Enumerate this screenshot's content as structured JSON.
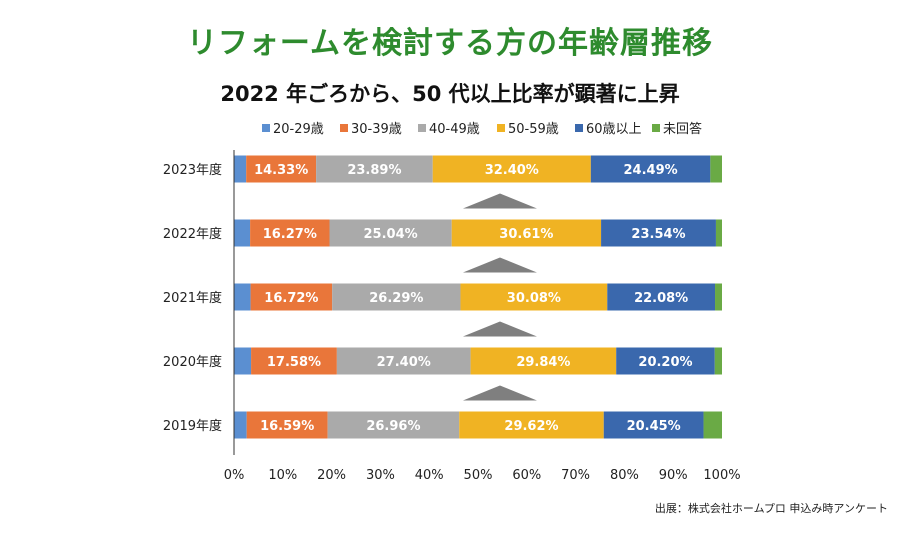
{
  "title": "リフォームを検討する方の年齢層推移",
  "subtitle": "2022 年ごろから、50 代以上比率が顕著に上昇",
  "source": "出展：株式会社ホームプロ 申込み時アンケート",
  "chart_data": {
    "type": "bar",
    "orientation": "horizontal",
    "stacked": true,
    "percent": true,
    "categories": [
      "2023年度",
      "2022年度",
      "2021年度",
      "2020年度",
      "2019年度"
    ],
    "series": [
      {
        "name": "20-29歳",
        "color": "#5b8fd1",
        "values": [
          2.5,
          3.3,
          3.4,
          3.5,
          2.6
        ],
        "labels": [
          "",
          "",
          "",
          "",
          ""
        ],
        "label_color": "#ffffff"
      },
      {
        "name": "30-39歳",
        "color": "#e9763a",
        "values": [
          14.33,
          16.27,
          16.72,
          17.58,
          16.59
        ],
        "labels": [
          "14.33%",
          "16.27%",
          "16.72%",
          "17.58%",
          "16.59%"
        ],
        "label_color": "#ffffff"
      },
      {
        "name": "40-49歳",
        "color": "#aaaaaa",
        "values": [
          23.89,
          25.04,
          26.29,
          27.4,
          26.96
        ],
        "labels": [
          "23.89%",
          "25.04%",
          "26.29%",
          "27.40%",
          "26.96%"
        ],
        "label_color": "#ffffff"
      },
      {
        "name": "50-59歳",
        "color": "#f0b323",
        "values": [
          32.4,
          30.61,
          30.08,
          29.84,
          29.62
        ],
        "labels": [
          "32.40%",
          "30.61%",
          "30.08%",
          "29.84%",
          "29.62%"
        ],
        "label_color": "#ffffff"
      },
      {
        "name": "60歳以上",
        "color": "#3a68ad",
        "values": [
          24.49,
          23.54,
          22.08,
          20.2,
          20.45
        ],
        "labels": [
          "24.49%",
          "23.54%",
          "22.08%",
          "20.20%",
          "20.45%"
        ],
        "label_color": "#ffffff"
      },
      {
        "name": "未回答",
        "color": "#6aaa45",
        "values": [
          2.39,
          1.24,
          1.43,
          1.48,
          3.78
        ],
        "labels": [
          "",
          "",
          "",
          "",
          ""
        ],
        "label_color": "#ffffff"
      }
    ],
    "xlim": [
      0,
      100
    ],
    "xticks": [
      "0%",
      "10%",
      "20%",
      "30%",
      "40%",
      "50%",
      "60%",
      "70%",
      "80%",
      "90%",
      "100%"
    ],
    "legend_position": "top",
    "arrow_color": "#7f7f7f",
    "grid": false
  }
}
